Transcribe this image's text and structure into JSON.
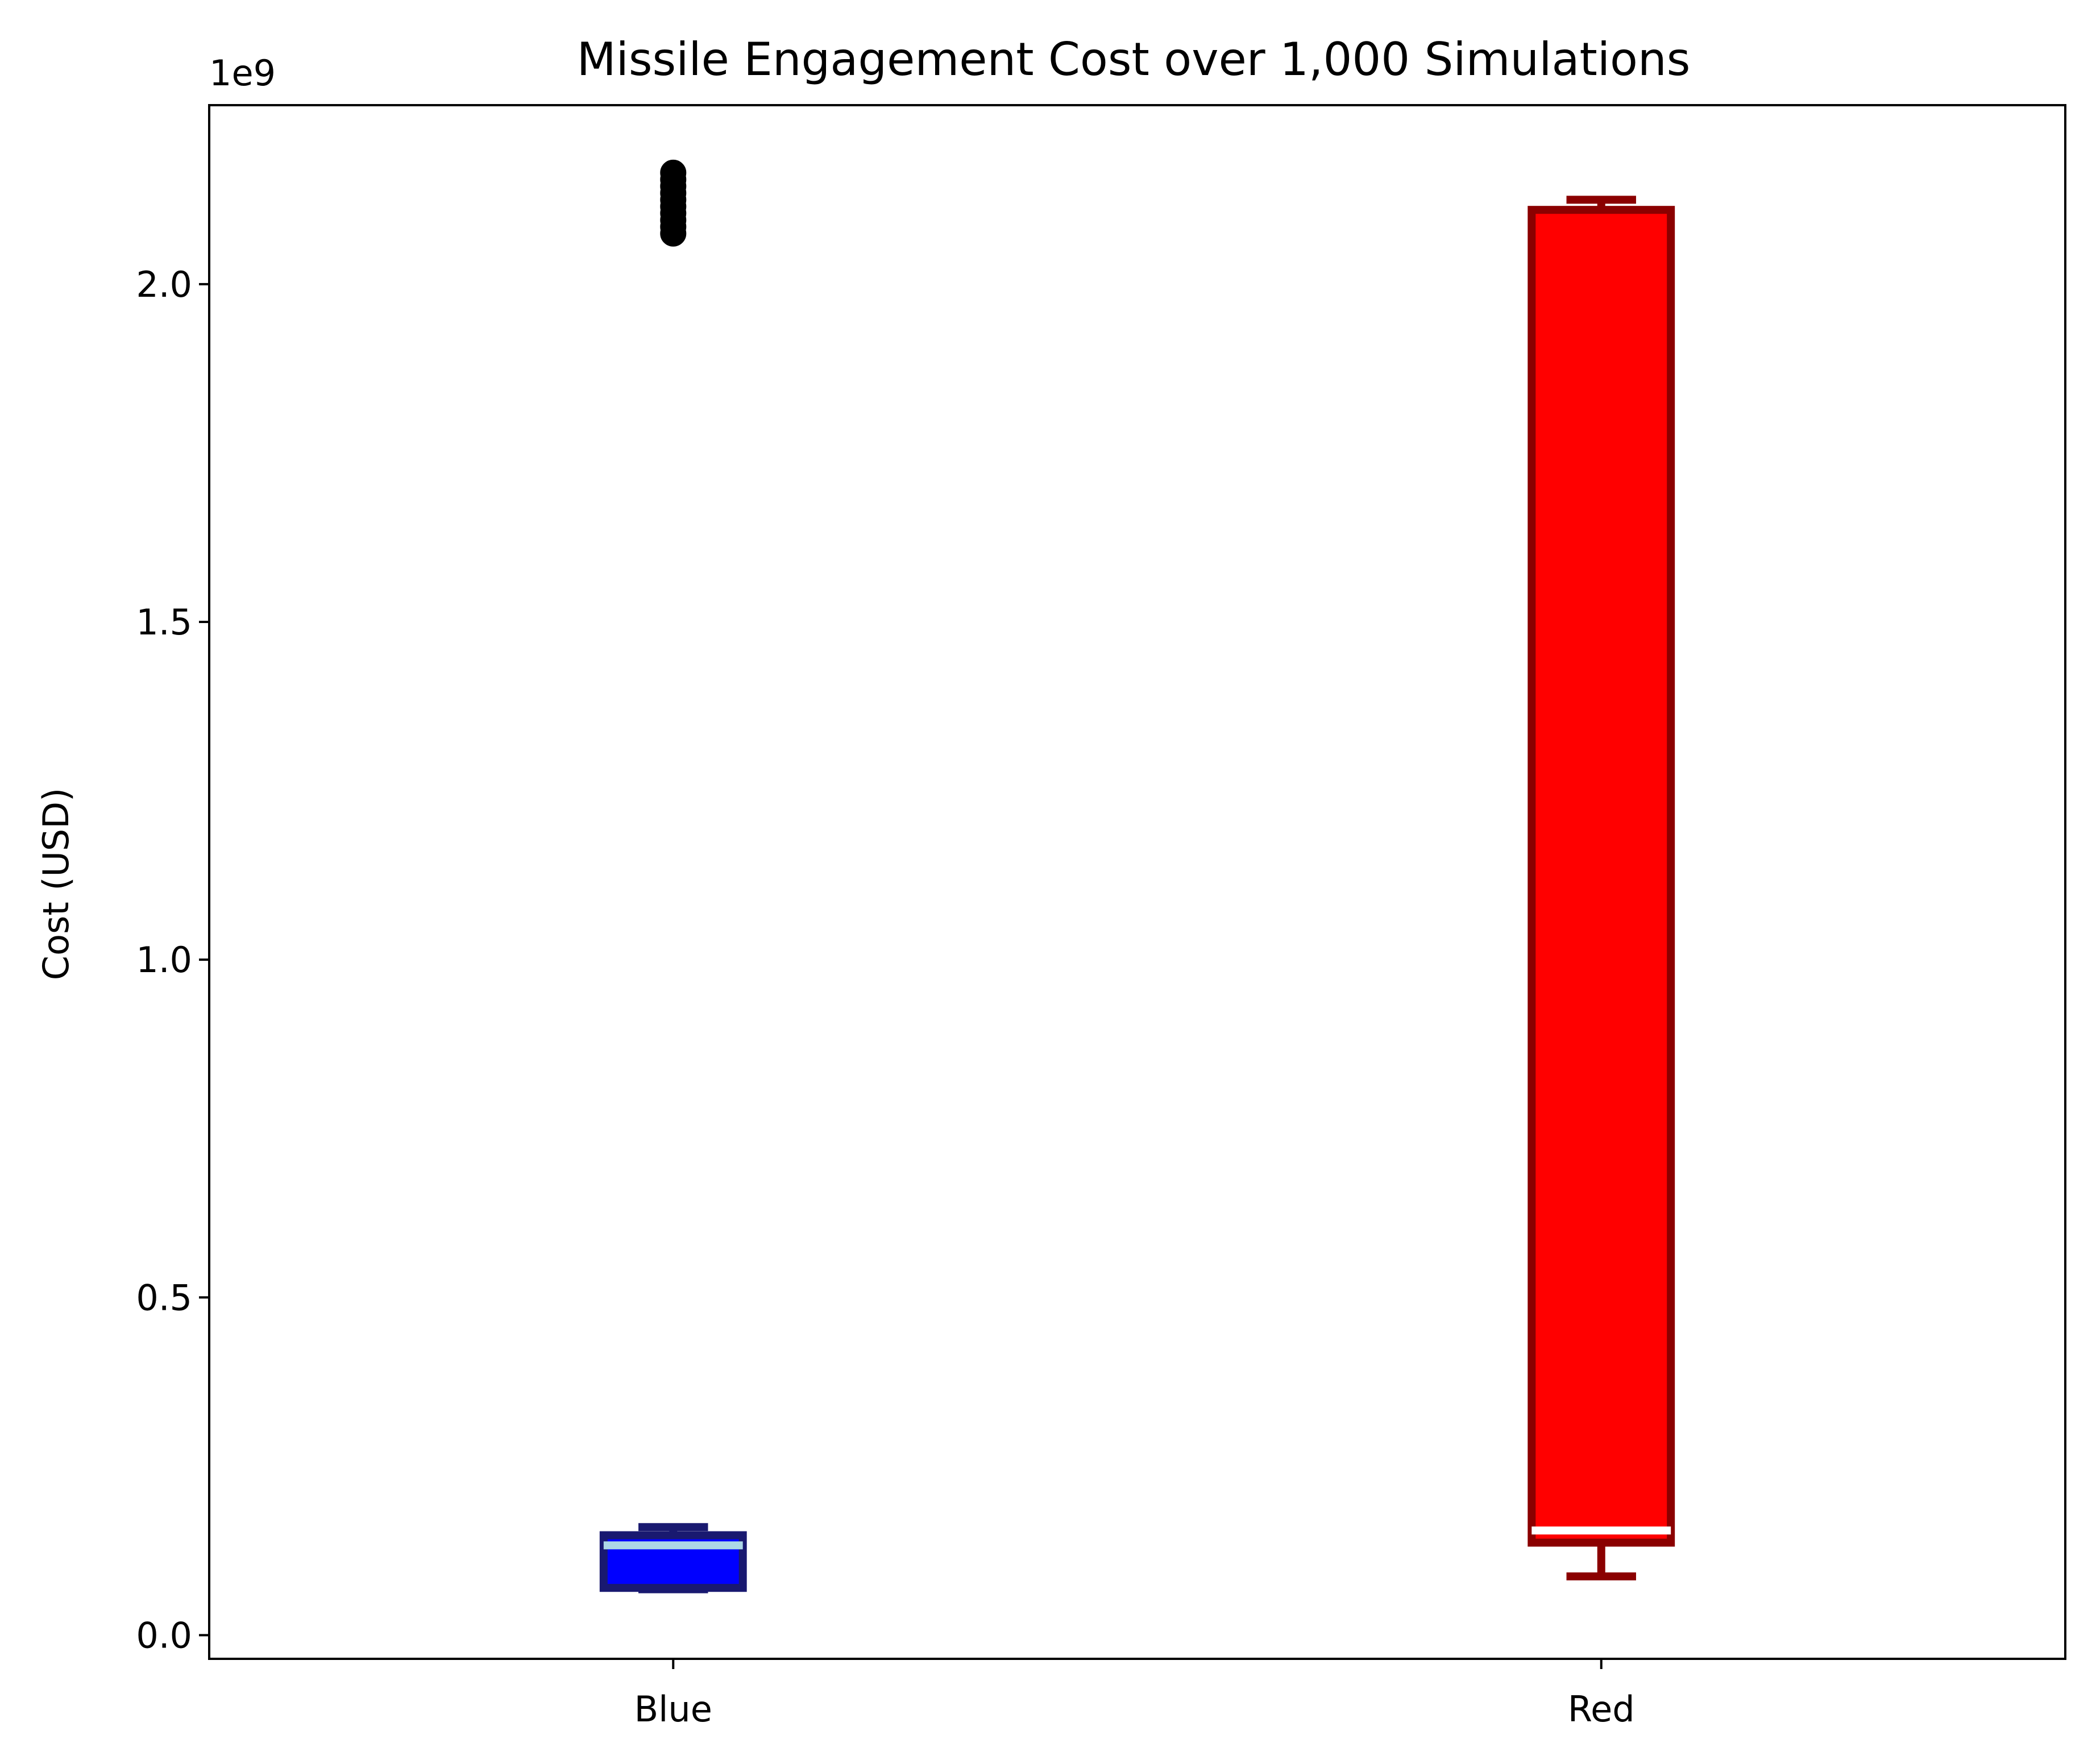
{
  "chart_data": {
    "type": "box",
    "title": "Missile Engagement Cost over 1,000 Simulations",
    "xlabel": "",
    "ylabel": "Cost (USD)",
    "y_offset_label": "1e9",
    "ylim": [
      -0.035,
      2.265
    ],
    "y_ticks": [
      0.0,
      0.5,
      1.0,
      1.5,
      2.0
    ],
    "y_tick_labels": [
      "0.0",
      "0.5",
      "1.0",
      "1.5",
      "2.0"
    ],
    "categories": [
      "Blue",
      "Red"
    ],
    "grid": false,
    "series": [
      {
        "name": "Blue",
        "whisker_low": 0.068,
        "q1": 0.07,
        "median": 0.133,
        "q3": 0.148,
        "whisker_high": 0.16,
        "outliers": [
          2.075,
          2.085,
          2.095,
          2.105,
          2.115,
          2.125,
          2.135,
          2.145,
          2.155,
          2.165
        ],
        "fill_color": "#0000ff",
        "edge_color": "#191970",
        "median_color": "#add8e6"
      },
      {
        "name": "Red",
        "whisker_low": 0.087,
        "q1": 0.137,
        "median": 0.155,
        "q3": 2.11,
        "whisker_high": 2.125,
        "outliers": [],
        "fill_color": "#ff0000",
        "edge_color": "#8b0000",
        "median_color": "#ffffff"
      }
    ]
  }
}
